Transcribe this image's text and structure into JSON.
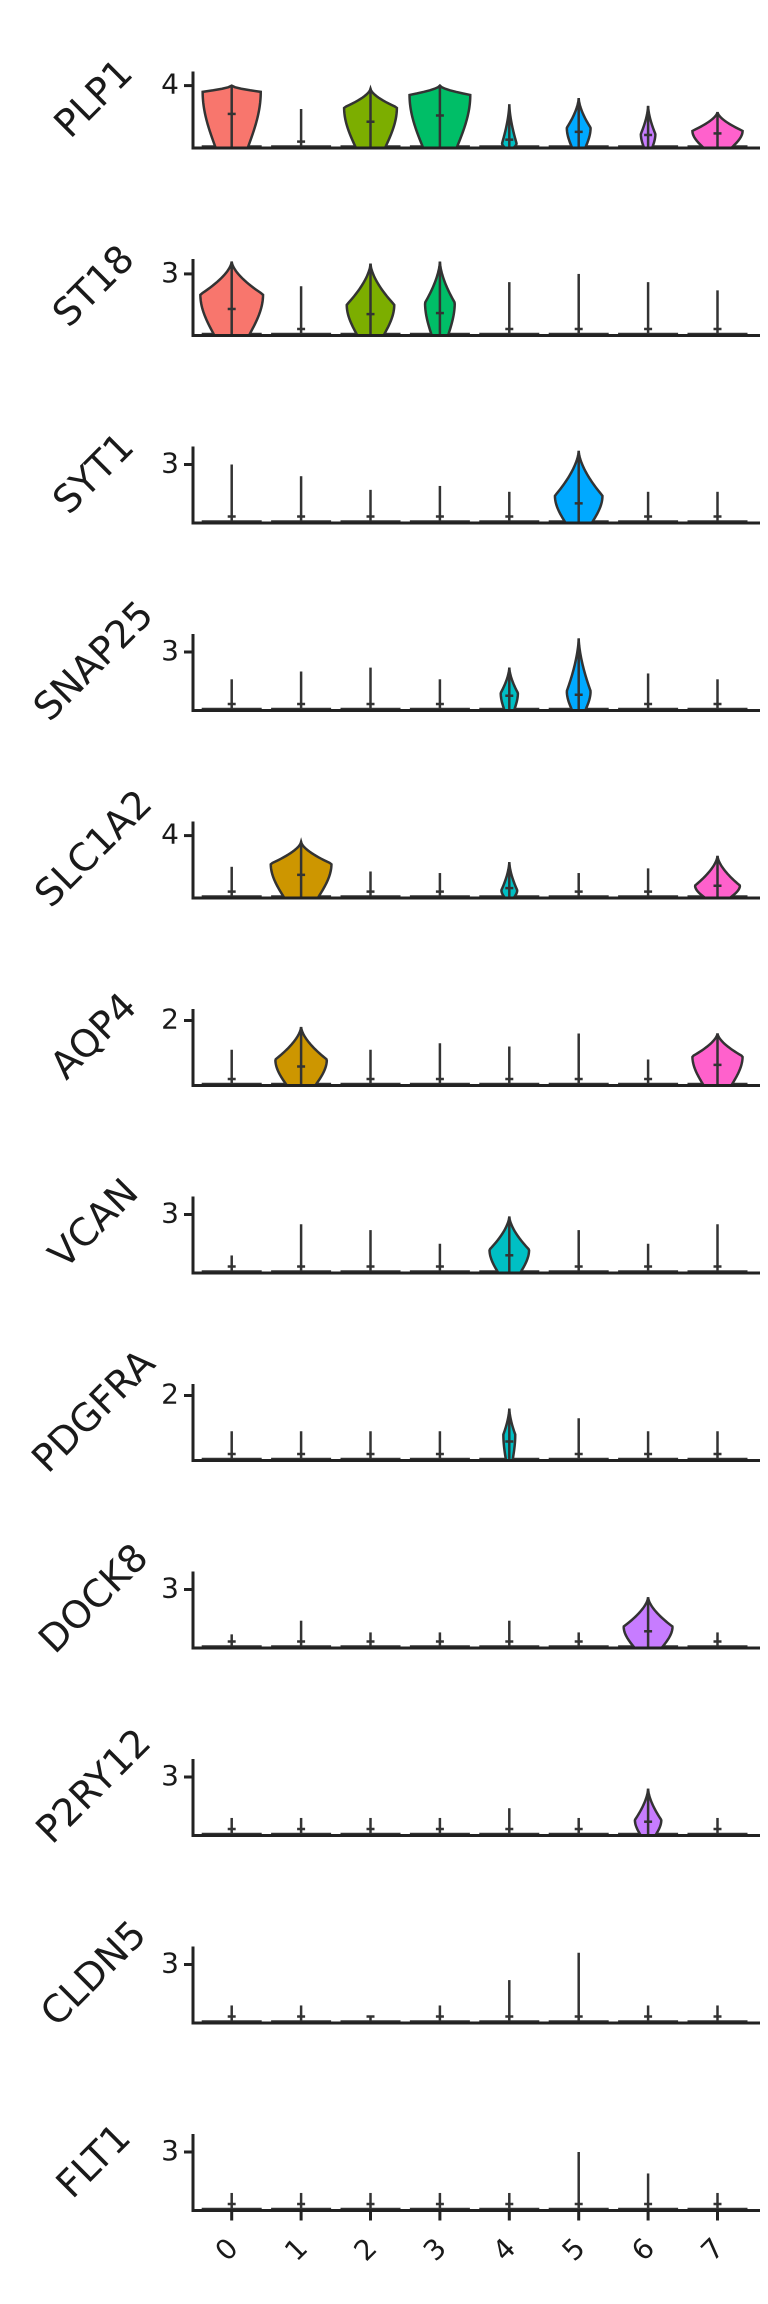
{
  "chart_data": {
    "type": "violin",
    "categories": [
      "0",
      "1",
      "2",
      "3",
      "4",
      "5",
      "6",
      "7"
    ],
    "colors": [
      "#f8766d",
      "#cd9600",
      "#7cae00",
      "#00be67",
      "#00bfc4",
      "#00a9ff",
      "#c77cff",
      "#ff61cc"
    ],
    "genes": [
      {
        "name": "PLP1",
        "tick": "4",
        "tick_value": 4,
        "ymax": 5.0,
        "violins": [
          {
            "max": 4.0,
            "mode": 3.6,
            "width": 0.88
          },
          {
            "max": 2.5,
            "mode": 0.05,
            "width": 0.05
          },
          {
            "max": 3.8,
            "mode": 2.6,
            "width": 0.8
          },
          {
            "max": 4.0,
            "mode": 3.4,
            "width": 0.92
          },
          {
            "max": 2.8,
            "mode": 0.3,
            "width": 0.22
          },
          {
            "max": 3.2,
            "mode": 1.3,
            "width": 0.36
          },
          {
            "max": 2.7,
            "mode": 0.9,
            "width": 0.22
          },
          {
            "max": 2.3,
            "mode": 1.1,
            "width": 0.76
          }
        ]
      },
      {
        "name": "ST18",
        "tick": "3",
        "tick_value": 3,
        "ymax": 3.8,
        "violins": [
          {
            "max": 3.6,
            "mode": 2.0,
            "width": 0.95
          },
          {
            "max": 2.4,
            "mode": 0.05,
            "width": 0.05
          },
          {
            "max": 3.5,
            "mode": 1.5,
            "width": 0.72
          },
          {
            "max": 3.6,
            "mode": 1.6,
            "width": 0.45
          },
          {
            "max": 2.6,
            "mode": 0.05,
            "width": 0.05
          },
          {
            "max": 3.0,
            "mode": 0.05,
            "width": 0.05
          },
          {
            "max": 2.6,
            "mode": 0.05,
            "width": 0.05
          },
          {
            "max": 2.2,
            "mode": 0.05,
            "width": 0.05
          }
        ]
      },
      {
        "name": "SYT1",
        "tick": "3",
        "tick_value": 3,
        "ymax": 4.0,
        "violins": [
          {
            "max": 3.0,
            "mode": 0.05,
            "width": 0.05
          },
          {
            "max": 2.4,
            "mode": 0.05,
            "width": 0.05
          },
          {
            "max": 1.7,
            "mode": 0.05,
            "width": 0.05
          },
          {
            "max": 1.9,
            "mode": 0.05,
            "width": 0.05
          },
          {
            "max": 1.6,
            "mode": 0.05,
            "width": 0.05
          },
          {
            "max": 3.7,
            "mode": 1.4,
            "width": 0.72
          },
          {
            "max": 1.6,
            "mode": 0.05,
            "width": 0.05
          },
          {
            "max": 1.6,
            "mode": 0.05,
            "width": 0.05
          }
        ]
      },
      {
        "name": "SNAP25",
        "tick": "3",
        "tick_value": 3,
        "ymax": 4.0,
        "violins": [
          {
            "max": 1.6,
            "mode": 0.05,
            "width": 0.05
          },
          {
            "max": 2.0,
            "mode": 0.05,
            "width": 0.05
          },
          {
            "max": 2.2,
            "mode": 0.05,
            "width": 0.05
          },
          {
            "max": 1.6,
            "mode": 0.05,
            "width": 0.05
          },
          {
            "max": 2.2,
            "mode": 0.9,
            "width": 0.26
          },
          {
            "max": 3.7,
            "mode": 1.0,
            "width": 0.36
          },
          {
            "max": 1.9,
            "mode": 0.05,
            "width": 0.05
          },
          {
            "max": 1.6,
            "mode": 0.05,
            "width": 0.05
          }
        ]
      },
      {
        "name": "SLC1A2",
        "tick": "4",
        "tick_value": 4,
        "ymax": 5.0,
        "violins": [
          {
            "max": 2.0,
            "mode": 0.05,
            "width": 0.05
          },
          {
            "max": 3.6,
            "mode": 2.2,
            "width": 0.92
          },
          {
            "max": 1.7,
            "mode": 0.05,
            "width": 0.05
          },
          {
            "max": 1.6,
            "mode": 0.05,
            "width": 0.05
          },
          {
            "max": 2.3,
            "mode": 0.5,
            "width": 0.24
          },
          {
            "max": 1.6,
            "mode": 0.05,
            "width": 0.05
          },
          {
            "max": 1.9,
            "mode": 0.05,
            "width": 0.05
          },
          {
            "max": 2.7,
            "mode": 0.8,
            "width": 0.68
          }
        ]
      },
      {
        "name": "AQP4",
        "tick": "2",
        "tick_value": 2,
        "ymax": 2.4,
        "violins": [
          {
            "max": 1.1,
            "mode": 0.03,
            "width": 0.05
          },
          {
            "max": 1.8,
            "mode": 0.8,
            "width": 0.78
          },
          {
            "max": 1.1,
            "mode": 0.03,
            "width": 0.05
          },
          {
            "max": 1.3,
            "mode": 0.03,
            "width": 0.05
          },
          {
            "max": 1.2,
            "mode": 0.03,
            "width": 0.05
          },
          {
            "max": 1.6,
            "mode": 0.03,
            "width": 0.05
          },
          {
            "max": 0.8,
            "mode": 0.03,
            "width": 0.05
          },
          {
            "max": 1.6,
            "mode": 0.9,
            "width": 0.76
          }
        ]
      },
      {
        "name": "VCAN",
        "tick": "3",
        "tick_value": 3,
        "ymax": 4.0,
        "violins": [
          {
            "max": 0.9,
            "mode": 0.05,
            "width": 0.05
          },
          {
            "max": 2.5,
            "mode": 0.05,
            "width": 0.05
          },
          {
            "max": 2.2,
            "mode": 0.05,
            "width": 0.05
          },
          {
            "max": 1.5,
            "mode": 0.05,
            "width": 0.05
          },
          {
            "max": 2.9,
            "mode": 1.2,
            "width": 0.6
          },
          {
            "max": 2.2,
            "mode": 0.05,
            "width": 0.05
          },
          {
            "max": 1.5,
            "mode": 0.05,
            "width": 0.05
          },
          {
            "max": 2.5,
            "mode": 0.05,
            "width": 0.05
          }
        ]
      },
      {
        "name": "PDGFRA",
        "tick": "2",
        "tick_value": 2,
        "ymax": 2.4,
        "violins": [
          {
            "max": 0.9,
            "mode": 0.03,
            "width": 0.05
          },
          {
            "max": 0.9,
            "mode": 0.03,
            "width": 0.05
          },
          {
            "max": 0.9,
            "mode": 0.03,
            "width": 0.05
          },
          {
            "max": 0.9,
            "mode": 0.03,
            "width": 0.05
          },
          {
            "max": 1.6,
            "mode": 0.8,
            "width": 0.18
          },
          {
            "max": 1.3,
            "mode": 0.03,
            "width": 0.05
          },
          {
            "max": 0.9,
            "mode": 0.03,
            "width": 0.05
          },
          {
            "max": 0.9,
            "mode": 0.03,
            "width": 0.05
          }
        ]
      },
      {
        "name": "DOCK8",
        "tick": "3",
        "tick_value": 3,
        "ymax": 4.0,
        "violins": [
          {
            "max": 0.7,
            "mode": 0.05,
            "width": 0.05
          },
          {
            "max": 1.4,
            "mode": 0.05,
            "width": 0.05
          },
          {
            "max": 0.8,
            "mode": 0.05,
            "width": 0.05
          },
          {
            "max": 0.8,
            "mode": 0.05,
            "width": 0.05
          },
          {
            "max": 1.4,
            "mode": 0.05,
            "width": 0.05
          },
          {
            "max": 0.8,
            "mode": 0.05,
            "width": 0.05
          },
          {
            "max": 2.6,
            "mode": 1.1,
            "width": 0.74
          },
          {
            "max": 0.8,
            "mode": 0.05,
            "width": 0.05
          }
        ]
      },
      {
        "name": "P2RY12",
        "tick": "3",
        "tick_value": 3,
        "ymax": 4.0,
        "violins": [
          {
            "max": 0.9,
            "mode": 0.05,
            "width": 0.05
          },
          {
            "max": 0.9,
            "mode": 0.05,
            "width": 0.05
          },
          {
            "max": 0.9,
            "mode": 0.05,
            "width": 0.05
          },
          {
            "max": 0.9,
            "mode": 0.05,
            "width": 0.05
          },
          {
            "max": 1.4,
            "mode": 0.05,
            "width": 0.05
          },
          {
            "max": 0.9,
            "mode": 0.05,
            "width": 0.05
          },
          {
            "max": 2.4,
            "mode": 0.8,
            "width": 0.4
          },
          {
            "max": 0.9,
            "mode": 0.05,
            "width": 0.05
          }
        ]
      },
      {
        "name": "CLDN5",
        "tick": "3",
        "tick_value": 3,
        "ymax": 4.0,
        "violins": [
          {
            "max": 0.9,
            "mode": 0.05,
            "width": 0.05
          },
          {
            "max": 0.9,
            "mode": 0.05,
            "width": 0.05
          },
          {
            "max": 0.3,
            "mode": 0.05,
            "width": 0.05
          },
          {
            "max": 0.9,
            "mode": 0.05,
            "width": 0.05
          },
          {
            "max": 2.2,
            "mode": 0.05,
            "width": 0.05
          },
          {
            "max": 3.6,
            "mode": 0.05,
            "width": 0.05
          },
          {
            "max": 0.9,
            "mode": 0.05,
            "width": 0.05
          },
          {
            "max": 0.9,
            "mode": 0.05,
            "width": 0.05
          }
        ]
      },
      {
        "name": "FLT1",
        "tick": "3",
        "tick_value": 3,
        "ymax": 4.0,
        "violins": [
          {
            "max": 0.9,
            "mode": 0.05,
            "width": 0.05
          },
          {
            "max": 0.9,
            "mode": 0.05,
            "width": 0.05
          },
          {
            "max": 0.9,
            "mode": 0.05,
            "width": 0.05
          },
          {
            "max": 0.9,
            "mode": 0.05,
            "width": 0.05
          },
          {
            "max": 0.9,
            "mode": 0.05,
            "width": 0.05
          },
          {
            "max": 3.0,
            "mode": 0.05,
            "width": 0.05
          },
          {
            "max": 1.9,
            "mode": 0.05,
            "width": 0.05
          },
          {
            "max": 0.9,
            "mode": 0.05,
            "width": 0.05
          }
        ]
      }
    ]
  }
}
